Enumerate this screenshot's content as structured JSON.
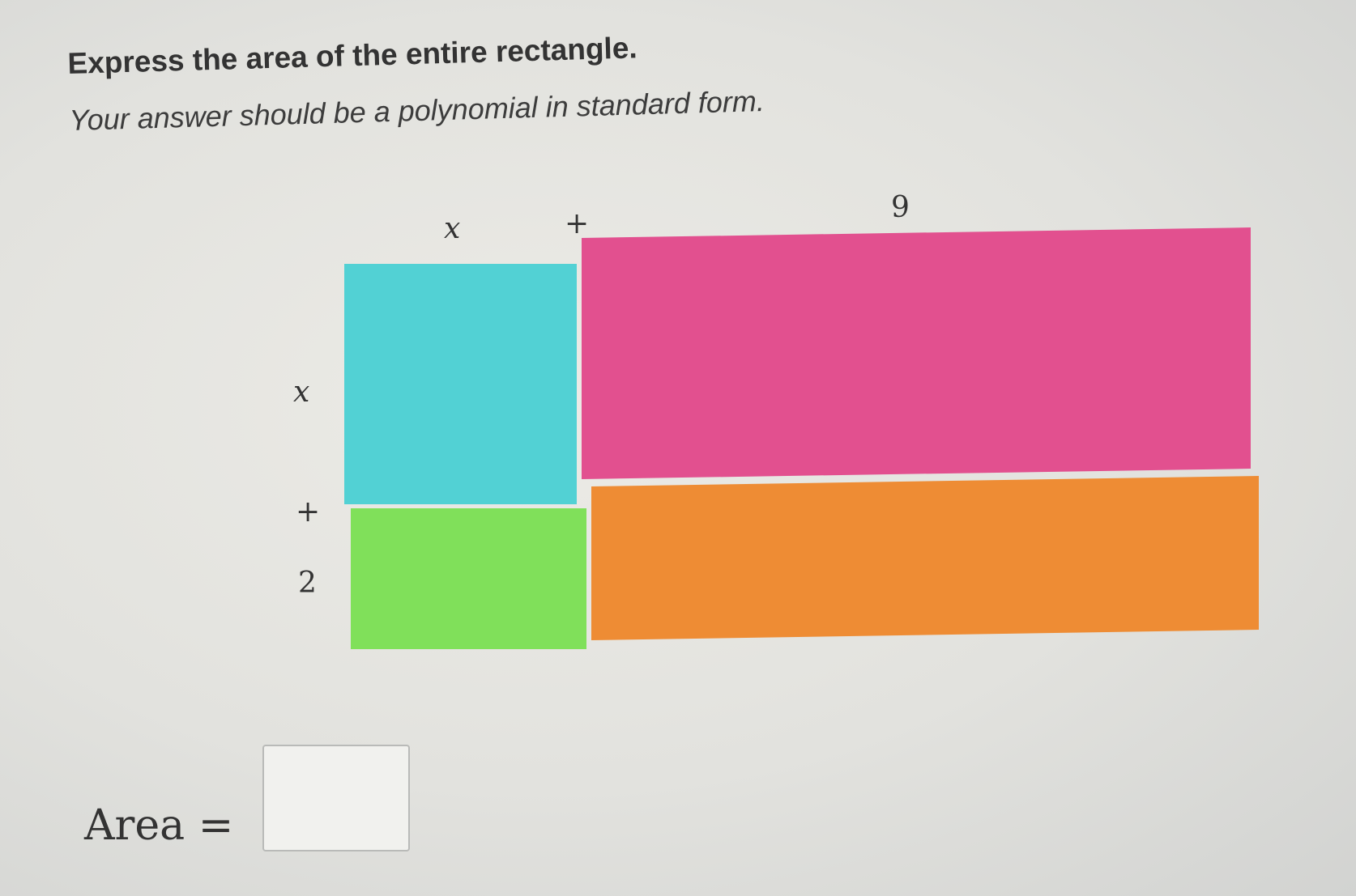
{
  "question": {
    "title": "Express the area of the entire rectangle.",
    "subtitle": "Your answer should be a polynomial in standard form."
  },
  "diagram": {
    "top_labels": [
      "x",
      "+",
      "9"
    ],
    "left_labels": [
      "x",
      "+",
      "2"
    ],
    "colors": {
      "top_left": "#52d1d4",
      "top_right": "#e2508f",
      "bottom_left": "#80e05a",
      "bottom_right": "#ee8c34"
    }
  },
  "answer": {
    "label": "Area =",
    "value": ""
  }
}
